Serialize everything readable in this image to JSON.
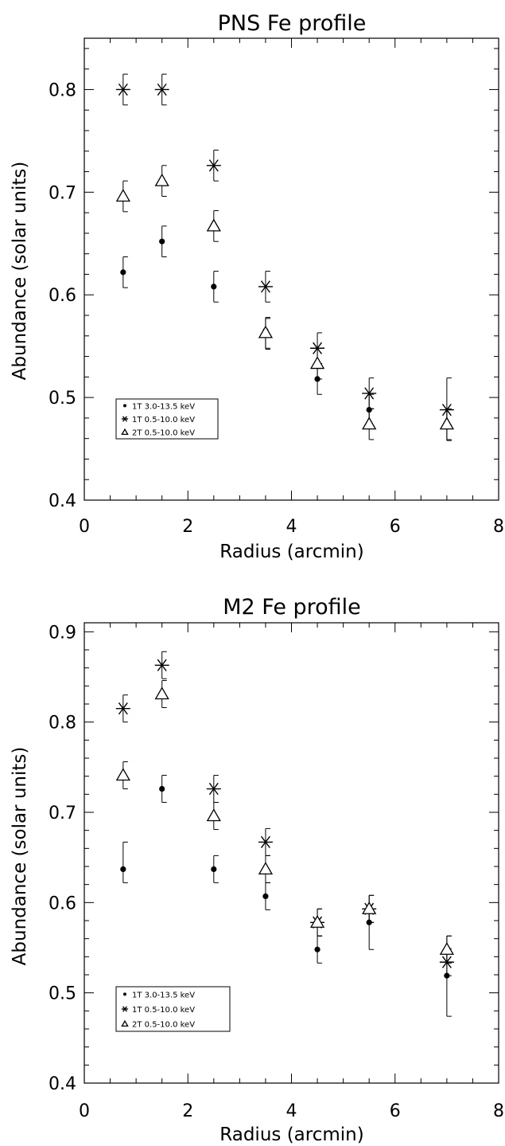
{
  "chart_data": [
    {
      "type": "scatter",
      "title": "PNS Fe profile",
      "xlabel": "Radius (arcmin)",
      "ylabel": "Abundance (solar units)",
      "xlim": [
        0,
        8
      ],
      "ylim": [
        0.4,
        0.85
      ],
      "xticks": [
        "0",
        "2",
        "4",
        "6",
        "8"
      ],
      "yticks": [
        "0.4",
        "0.5",
        "0.6",
        "0.7",
        "0.8"
      ],
      "legend_position": "lower-left",
      "series": [
        {
          "name": "1T 3.0-13.5 keV",
          "marker": "dot",
          "x": [
            0.75,
            1.5,
            2.5,
            3.5,
            4.5,
            5.5,
            7.0
          ],
          "y": [
            0.622,
            0.652,
            0.608,
            0.565,
            0.518,
            0.488,
            0.474
          ],
          "err_low": [
            0.015,
            0.015,
            0.015,
            0.018,
            0.015,
            0.015,
            0.016
          ],
          "err_high": [
            0.015,
            0.015,
            0.015,
            0.012,
            0.015,
            0.015,
            0.014
          ]
        },
        {
          "name": "1T 0.5-10.0 keV",
          "marker": "asterisk",
          "x": [
            0.75,
            1.5,
            2.5,
            3.5,
            4.5,
            5.5,
            7.0
          ],
          "y": [
            0.8,
            0.8,
            0.726,
            0.608,
            0.548,
            0.504,
            0.488
          ],
          "err_low": [
            0.015,
            0.015,
            0.015,
            0.015,
            0.015,
            0.015,
            0.015
          ],
          "err_high": [
            0.015,
            0.015,
            0.015,
            0.015,
            0.015,
            0.015,
            0.031
          ]
        },
        {
          "name": "2T 0.5-10.0 keV",
          "marker": "triangle",
          "x": [
            0.75,
            1.5,
            2.5,
            3.5,
            4.5,
            5.5,
            7.0
          ],
          "y": [
            0.696,
            0.711,
            0.667,
            0.563,
            0.533,
            0.474,
            0.474
          ],
          "err_low": [
            0.015,
            0.015,
            0.015,
            0.015,
            0.015,
            0.015,
            0.015
          ],
          "err_high": [
            0.015,
            0.015,
            0.015,
            0.015,
            0.015,
            0.015,
            0.015
          ]
        }
      ]
    },
    {
      "type": "scatter",
      "title": "M2 Fe profile",
      "xlabel": "Radius (arcmin)",
      "ylabel": "Abundance (solar units)",
      "xlim": [
        0,
        8
      ],
      "ylim": [
        0.4,
        0.91
      ],
      "xticks": [
        "0",
        "2",
        "4",
        "6",
        "8"
      ],
      "yticks": [
        "0.4",
        "0.5",
        "0.6",
        "0.7",
        "0.8",
        "0.9"
      ],
      "legend_position": "lower-left",
      "series": [
        {
          "name": "1T 3.0-13.5 keV",
          "marker": "dot",
          "x": [
            0.75,
            1.5,
            2.5,
            3.5,
            4.5,
            5.5,
            7.0
          ],
          "y": [
            0.637,
            0.726,
            0.637,
            0.607,
            0.548,
            0.578,
            0.519
          ],
          "err_low": [
            0.015,
            0.015,
            0.015,
            0.015,
            0.015,
            0.03,
            0.045
          ],
          "err_high": [
            0.03,
            0.015,
            0.015,
            0.015,
            0.015,
            0.015,
            0.044
          ]
        },
        {
          "name": "1T 0.5-10.0 keV",
          "marker": "asterisk",
          "x": [
            0.75,
            1.5,
            2.5,
            3.5,
            4.5,
            5.5,
            7.0
          ],
          "y": [
            0.815,
            0.863,
            0.726,
            0.667,
            0.578,
            0.593,
            0.534
          ],
          "err_low": [
            0.015,
            0.015,
            0.015,
            0.015,
            0.015,
            0.015,
            0.015
          ],
          "err_high": [
            0.015,
            0.015,
            0.015,
            0.015,
            0.015,
            0.015,
            0.015
          ]
        },
        {
          "name": "2T 0.5-10.0 keV",
          "marker": "triangle",
          "x": [
            0.75,
            1.5,
            2.5,
            3.5,
            4.5,
            5.5,
            7.0
          ],
          "y": [
            0.741,
            0.831,
            0.696,
            0.637,
            0.578,
            0.593,
            0.548
          ],
          "err_low": [
            0.015,
            0.015,
            0.015,
            0.015,
            0.015,
            0.015,
            0.015
          ],
          "err_high": [
            0.015,
            0.015,
            0.015,
            0.015,
            0.015,
            0.015,
            0.015
          ]
        }
      ]
    }
  ]
}
